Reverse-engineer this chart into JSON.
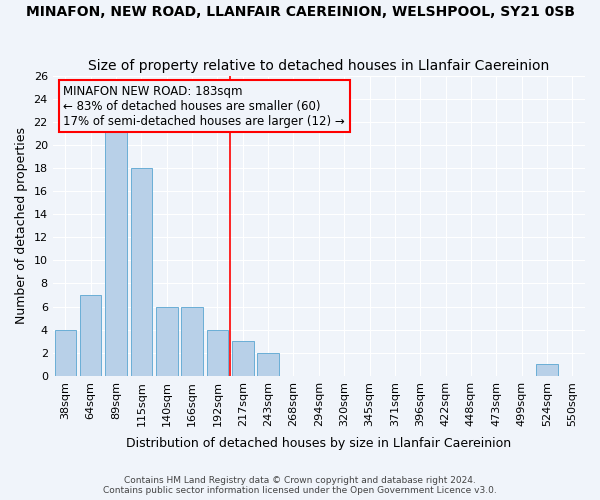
{
  "title": "MINAFON, NEW ROAD, LLANFAIR CAEREINION, WELSHPOOL, SY21 0SB",
  "subtitle": "Size of property relative to detached houses in Llanfair Caereinion",
  "xlabel": "Distribution of detached houses by size in Llanfair Caereinion",
  "ylabel": "Number of detached properties",
  "categories": [
    "38sqm",
    "64sqm",
    "89sqm",
    "115sqm",
    "140sqm",
    "166sqm",
    "192sqm",
    "217sqm",
    "243sqm",
    "268sqm",
    "294sqm",
    "320sqm",
    "345sqm",
    "371sqm",
    "396sqm",
    "422sqm",
    "448sqm",
    "473sqm",
    "499sqm",
    "524sqm",
    "550sqm"
  ],
  "values": [
    4,
    7,
    22,
    18,
    6,
    6,
    4,
    3,
    2,
    0,
    0,
    0,
    0,
    0,
    0,
    0,
    0,
    0,
    0,
    1,
    0
  ],
  "bar_color": "#b8d0e8",
  "bar_edge_color": "#6aaed6",
  "ylim": [
    0,
    26
  ],
  "yticks": [
    0,
    2,
    4,
    6,
    8,
    10,
    12,
    14,
    16,
    18,
    20,
    22,
    24,
    26
  ],
  "vline_x": 6.5,
  "vline_color": "red",
  "annotation_title": "MINAFON NEW ROAD: 183sqm",
  "annotation_line2": "← 83% of detached houses are smaller (60)",
  "annotation_line3": "17% of semi-detached houses are larger (12) →",
  "annotation_box_color": "red",
  "footnote1": "Contains HM Land Registry data © Crown copyright and database right 2024.",
  "footnote2": "Contains public sector information licensed under the Open Government Licence v3.0.",
  "bg_color": "#f0f4fa",
  "grid_color": "#ffffff",
  "title_fontsize": 10,
  "subtitle_fontsize": 10,
  "xlabel_fontsize": 9,
  "ylabel_fontsize": 9,
  "tick_fontsize": 8,
  "annotation_fontsize": 8.5
}
